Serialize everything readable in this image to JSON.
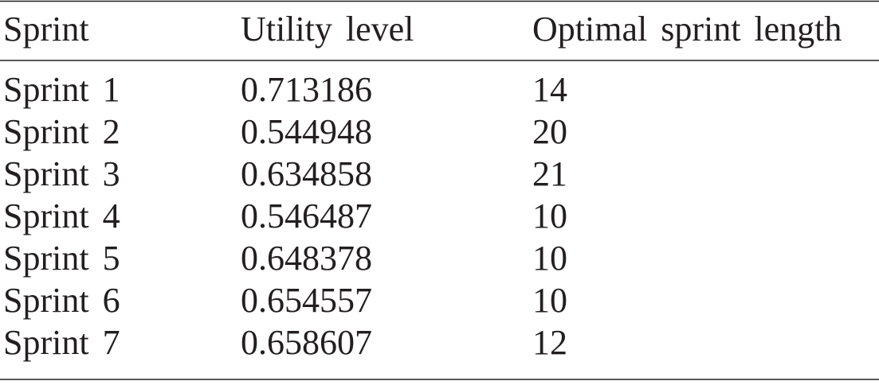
{
  "table": {
    "header": [
      "Sprint",
      "Utility level",
      "Optimal sprint length"
    ],
    "rows": [
      [
        "Sprint 1",
        0.713186,
        14
      ],
      [
        "Sprint 2",
        0.544948,
        20
      ],
      [
        "Sprint 3",
        0.634858,
        21
      ],
      [
        "Sprint 4",
        0.546487,
        10
      ],
      [
        "Sprint 5",
        0.648378,
        10
      ],
      [
        "Sprint 6",
        0.654557,
        10
      ],
      [
        "Sprint 7",
        0.658607,
        12
      ]
    ]
  }
}
